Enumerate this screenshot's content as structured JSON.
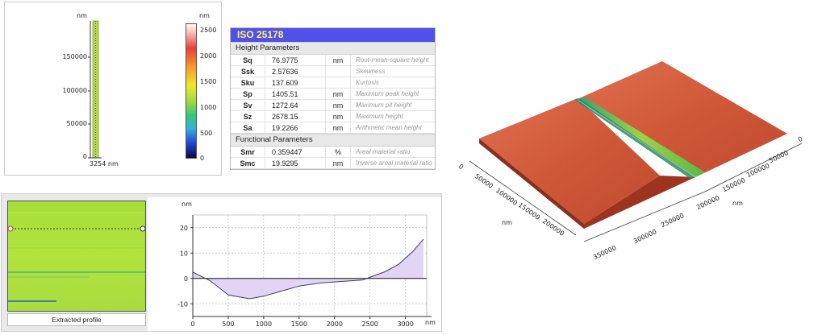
{
  "height_map": {
    "unit_label": "nm",
    "y_ticks": [
      "150000",
      "100000",
      "50000",
      "0"
    ],
    "x_tick_label": "3254 nm",
    "colorbar": {
      "unit_label": "nm",
      "ticks": [
        "2500",
        "2000",
        "1500",
        "1000",
        "500",
        "0"
      ]
    }
  },
  "iso": {
    "title": "ISO 25178",
    "sections": [
      {
        "name": "Height Parameters",
        "rows": [
          {
            "sym": "Sq",
            "val": "76.9775",
            "unit": "nm",
            "desc": "Root-mean-square height"
          },
          {
            "sym": "Ssk",
            "val": "2.57636",
            "unit": "",
            "desc": "Skewness"
          },
          {
            "sym": "Sku",
            "val": "137.609",
            "unit": "",
            "desc": "Kurtosis"
          },
          {
            "sym": "Sp",
            "val": "1405.51",
            "unit": "nm",
            "desc": "Maximum peak height"
          },
          {
            "sym": "Sv",
            "val": "1272.64",
            "unit": "nm",
            "desc": "Maximum pit height"
          },
          {
            "sym": "Sz",
            "val": "2678.15",
            "unit": "nm",
            "desc": "Maximum height"
          },
          {
            "sym": "Sa",
            "val": "19.2266",
            "unit": "nm",
            "desc": "Arithmetic mean height"
          }
        ]
      },
      {
        "name": "Functional Parameters",
        "rows": [
          {
            "sym": "Smr",
            "val": "0.359447",
            "unit": "%",
            "desc": "Areal material ratio"
          },
          {
            "sym": "Smc",
            "val": "19.9295",
            "unit": "nm",
            "desc": "Inverse areal material ratio"
          }
        ]
      }
    ]
  },
  "extracted_profile": {
    "label": "Extracted profile"
  },
  "chart_data": {
    "type": "area",
    "ylabel": "nm",
    "xlabel": "nm",
    "x": [
      0,
      250,
      500,
      800,
      1000,
      1250,
      1500,
      1800,
      2100,
      2400,
      2550,
      2700,
      2900,
      3100,
      3254
    ],
    "y": [
      2.5,
      -1.0,
      -6.5,
      -8.0,
      -7.0,
      -5.0,
      -3.0,
      -1.8,
      -1.2,
      -0.6,
      1.0,
      2.5,
      5.5,
      10.5,
      15.5
    ],
    "xlim": [
      0,
      3300
    ],
    "ylim": [
      -15,
      25
    ],
    "xticks": [
      0,
      500,
      1000,
      1500,
      2000,
      2500,
      3000
    ],
    "yticks": [
      -10,
      0,
      10,
      20
    ],
    "grid": true
  },
  "surface_3d": {
    "axis_left": {
      "ticks": [
        "0",
        "50000",
        "100000",
        "150000",
        "200000"
      ],
      "label": "nm"
    },
    "axis_right_front": {
      "ticks": [
        "200000",
        "250000",
        "300000",
        "350000"
      ],
      "label": ""
    },
    "axis_right_back": {
      "ticks": [
        "0",
        "50000",
        "100000",
        "150000"
      ],
      "label": "nm"
    },
    "colors": {
      "surface": "#d2573a",
      "ridge": "#7ab648"
    }
  }
}
